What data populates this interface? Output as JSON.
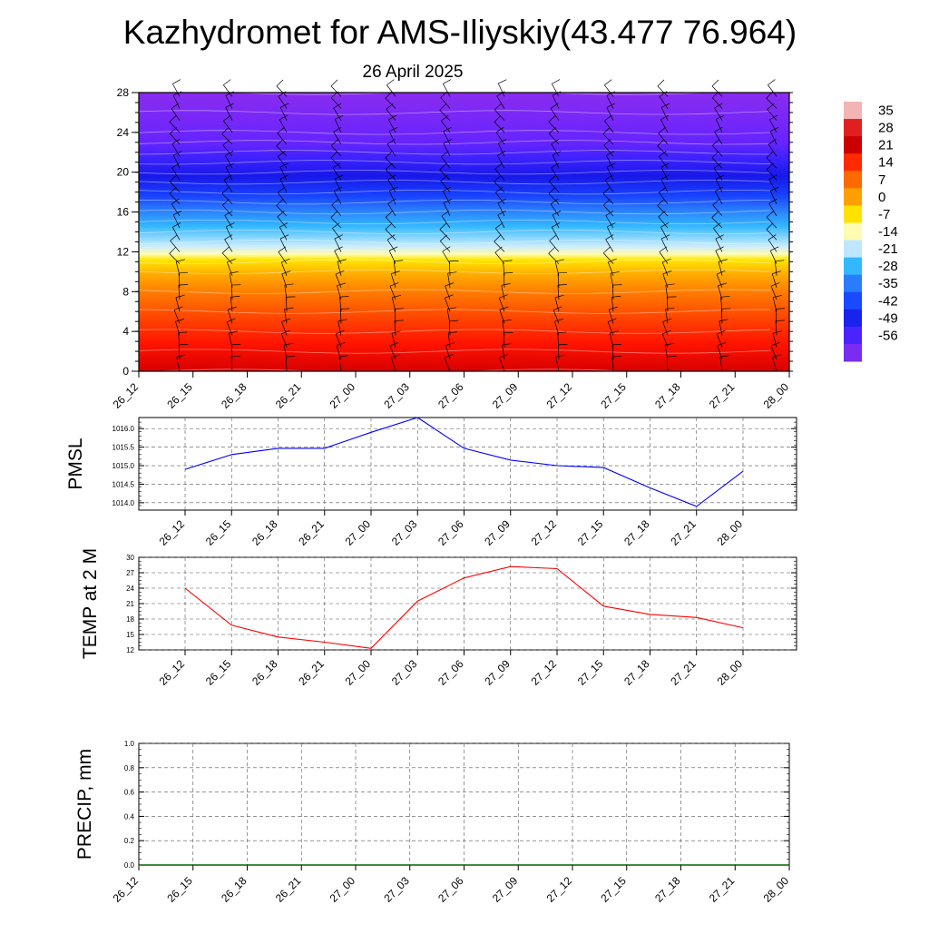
{
  "title": "Kazhydromet for AMS-Iliyskiy(43.477 76.964)",
  "subtitle": "26 April 2025",
  "time_labels": [
    "26_12",
    "26_15",
    "26_18",
    "26_21",
    "27_00",
    "27_03",
    "27_06",
    "27_09",
    "27_12",
    "27_15",
    "27_18",
    "27_21",
    "28_00"
  ],
  "colorbar": {
    "labels": [
      "35",
      "28",
      "21",
      "14",
      "7",
      "0",
      "-7",
      "-14",
      "-21",
      "-28",
      "-35",
      "-42",
      "-49",
      "-56"
    ]
  },
  "chart_data": [
    {
      "type": "heatmap",
      "title": "",
      "xlabel": "",
      "ylabel": "",
      "y_ticks": [
        0,
        4,
        8,
        12,
        16,
        20,
        24,
        28
      ],
      "ylim": [
        0,
        28
      ],
      "levels": [
        0,
        2,
        4,
        6,
        8,
        10,
        11,
        12,
        13,
        14,
        15,
        16,
        17,
        18,
        19,
        20,
        21,
        22,
        23,
        24,
        26,
        28
      ],
      "temperature": [
        31,
        26,
        22,
        16,
        11,
        4,
        0,
        -8,
        -18,
        -26,
        -32,
        -38,
        -44,
        -49,
        -53,
        -55,
        -56,
        -55,
        -52,
        -56,
        -60,
        -62
      ],
      "wind_barbs": "overlay"
    },
    {
      "type": "line",
      "ylabel": "PMSL",
      "y_ticks": [
        "1014.0",
        "1014.5",
        "1015.0",
        "1015.5",
        "1016.0"
      ],
      "ylim": [
        1013.8,
        1016.3
      ],
      "series": [
        {
          "values": [
            1014.9,
            1015.3,
            1015.47,
            1015.47,
            1015.9,
            1016.3,
            1015.47,
            1015.15,
            1015.0,
            1014.95,
            1014.4,
            1013.9,
            1014.85
          ],
          "color": "#0000ff"
        }
      ]
    },
    {
      "type": "line",
      "ylabel": "TEMP at 2 M",
      "y_ticks": [
        "12",
        "15",
        "18",
        "21",
        "24",
        "27",
        "30"
      ],
      "ylim": [
        12,
        30
      ],
      "series": [
        {
          "values": [
            24,
            16.8,
            14.5,
            13.5,
            12.3,
            21.5,
            26,
            28.2,
            27.8,
            20.5,
            18.9,
            18.3,
            16.3
          ],
          "color": "#ff0000"
        }
      ]
    },
    {
      "type": "line",
      "ylabel": "PRECIP, mm",
      "y_ticks": [
        "0.0",
        "0.2",
        "0.4",
        "0.6",
        "0.8",
        "1.0"
      ],
      "ylim": [
        0,
        1
      ],
      "series": [
        {
          "values": [
            0,
            0,
            0,
            0,
            0,
            0,
            0,
            0,
            0,
            0,
            0,
            0,
            0
          ],
          "color": "#006400"
        }
      ]
    }
  ]
}
